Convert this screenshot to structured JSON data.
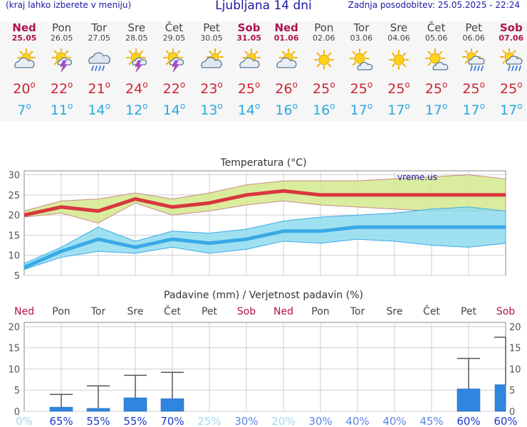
{
  "header": {
    "menu_hint": "(kraj lahko izberete v meniju)",
    "title": "Ljubljana 14 dni",
    "updated": "Zadnja posodobitev: 25.05.2025 - 22:24"
  },
  "colors": {
    "weekend": "#b0124e",
    "weekday": "#444444",
    "tmax": "#cc2233",
    "tmin": "#2aa8e0"
  },
  "days": [
    {
      "name": "Ned",
      "date": "25.05",
      "weekend": true,
      "icon": "partly-cloudy-icon",
      "tmax": "20",
      "tmin": "7"
    },
    {
      "name": "Pon",
      "date": "26.05",
      "weekend": false,
      "icon": "sun-thunder-icon",
      "tmax": "22",
      "tmin": "11"
    },
    {
      "name": "Tor",
      "date": "27.05",
      "weekend": false,
      "icon": "cloud-rain-icon",
      "tmax": "21",
      "tmin": "14"
    },
    {
      "name": "Sre",
      "date": "28.05",
      "weekend": false,
      "icon": "sun-thunder-icon",
      "tmax": "24",
      "tmin": "12"
    },
    {
      "name": "Čet",
      "date": "29.05",
      "weekend": false,
      "icon": "sun-thunder-icon",
      "tmax": "22",
      "tmin": "14"
    },
    {
      "name": "Pet",
      "date": "30.05",
      "weekend": false,
      "icon": "cloudy-icon",
      "tmax": "23",
      "tmin": "13"
    },
    {
      "name": "Sob",
      "date": "31.05",
      "weekend": true,
      "icon": "partly-cloudy-icon",
      "tmax": "25",
      "tmin": "14"
    },
    {
      "name": "Ned",
      "date": "01.06",
      "weekend": true,
      "icon": "partly-cloudy-icon",
      "tmax": "26",
      "tmin": "16"
    },
    {
      "name": "Pon",
      "date": "02.06",
      "weekend": false,
      "icon": "sun-icon",
      "tmax": "25",
      "tmin": "16"
    },
    {
      "name": "Tor",
      "date": "03.06",
      "weekend": false,
      "icon": "sun-cloud-icon",
      "tmax": "25",
      "tmin": "17"
    },
    {
      "name": "Sre",
      "date": "04.06",
      "weekend": false,
      "icon": "sun-icon",
      "tmax": "25",
      "tmin": "17"
    },
    {
      "name": "Čet",
      "date": "05.06",
      "weekend": false,
      "icon": "sun-cloud-icon",
      "tmax": "25",
      "tmin": "17"
    },
    {
      "name": "Pet",
      "date": "06.06",
      "weekend": false,
      "icon": "sun-rain-icon",
      "tmax": "25",
      "tmin": "17"
    },
    {
      "name": "Sob",
      "date": "07.06",
      "weekend": true,
      "icon": "sun-rain-icon",
      "tmax": "25",
      "tmin": "17"
    }
  ],
  "chart_data": [
    {
      "type": "line",
      "title": "Temperatura (°C)",
      "watermark": "vreme.us",
      "yticks": [
        "30",
        "25",
        "20",
        "15",
        "10",
        "5"
      ],
      "ylim": [
        5,
        31
      ],
      "grid": true,
      "x": [
        "Ned",
        "Pon",
        "Tor",
        "Sre",
        "Čet",
        "Pet",
        "Sob",
        "Ned",
        "Pon",
        "Tor",
        "Sre",
        "Čet",
        "Pet",
        "Sob"
      ],
      "series": [
        {
          "role": "max",
          "color": "#d8373d",
          "values": [
            20,
            22,
            21,
            24,
            22,
            23,
            25,
            26,
            25,
            25,
            25,
            25,
            25,
            25
          ],
          "band_upper": [
            21,
            23.5,
            24,
            25.5,
            24,
            25.5,
            27.5,
            28.5,
            28.5,
            28.5,
            29,
            29.5,
            30,
            29
          ],
          "band_lower": [
            19.5,
            20.5,
            18,
            23,
            20,
            21,
            22.5,
            23.5,
            22.5,
            22,
            21.5,
            21,
            21,
            21
          ]
        },
        {
          "role": "min",
          "color": "#3aaae6",
          "values": [
            7,
            11,
            14,
            12,
            14,
            13,
            14,
            16,
            16,
            17,
            17,
            17,
            17,
            17
          ],
          "band_upper": [
            8,
            12,
            17,
            13.5,
            16,
            15.5,
            16.5,
            18.5,
            19.5,
            20,
            20.5,
            21.5,
            22,
            21
          ],
          "band_lower": [
            6.5,
            9.5,
            11,
            10.5,
            12,
            10.5,
            11.5,
            13.5,
            13,
            14,
            13.5,
            12.5,
            12,
            13
          ]
        }
      ]
    },
    {
      "type": "bar",
      "title": "Padavine (mm) / Verjetnost padavin (%)",
      "yticks": [
        "20",
        "15",
        "10",
        "5",
        "0"
      ],
      "ylim": [
        0,
        21
      ],
      "categories": [
        "Ned",
        "Pon",
        "Tor",
        "Sre",
        "Čet",
        "Pet",
        "Sob",
        "Ned",
        "Pon",
        "Tor",
        "Sre",
        "Čet",
        "Pet",
        "Sob"
      ],
      "values": [
        0,
        1,
        0.7,
        3.2,
        3,
        0,
        0,
        0,
        0,
        0,
        0,
        0,
        5.3,
        6.3
      ],
      "error_max": [
        0,
        4,
        6,
        8.5,
        9.2,
        0,
        0,
        0,
        0,
        0,
        0,
        0,
        12.5,
        17.5
      ],
      "probability": [
        "0%",
        "65%",
        "55%",
        "55%",
        "70%",
        "25%",
        "30%",
        "20%",
        "30%",
        "40%",
        "40%",
        "45%",
        "60%",
        "60%"
      ],
      "bar_color": "#2f86e0"
    }
  ]
}
